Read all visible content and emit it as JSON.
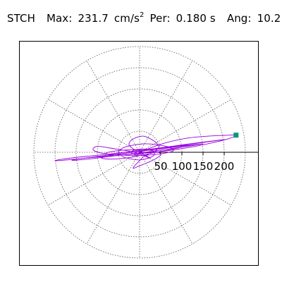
{
  "header": {
    "station": "STCH",
    "max_label": "Max:",
    "max_value": "231.7",
    "max_unit_base": "cm/s",
    "max_unit_exp": "2",
    "per_label": "Per:",
    "per_value": "0.180 s",
    "ang_label": "Ang:",
    "ang_value": "10.2"
  },
  "colors": {
    "trace": "#9900dd",
    "marker": "#009977",
    "grid": "#555555",
    "axis": "#000000",
    "frame": "#000000"
  },
  "chart_data": {
    "type": "polar-orbit",
    "title": "",
    "radial_ticks": [
      50,
      100,
      150,
      200
    ],
    "radial_tick_labels": [
      "50",
      "100",
      "150",
      "200"
    ],
    "rlim": [
      0,
      250
    ],
    "grid": true,
    "angular_grid_step_deg": 30,
    "max_point": {
      "x": 228,
      "y": 40.5
    },
    "series": [
      {
        "points": [
          [
            0,
            0
          ],
          [
            20,
            8
          ],
          [
            60,
            22
          ],
          [
            110,
            33
          ],
          [
            160,
            38
          ],
          [
            200,
            40
          ],
          [
            228,
            40.5
          ],
          [
            210,
            32
          ],
          [
            170,
            22
          ],
          [
            120,
            12
          ],
          [
            60,
            3
          ],
          [
            0,
            -3
          ],
          [
            -60,
            -8
          ],
          [
            -120,
            -13
          ],
          [
            -170,
            -18
          ],
          [
            -200,
            -20
          ],
          [
            -180,
            -16
          ],
          [
            -130,
            -10
          ],
          [
            -70,
            -4
          ],
          [
            -20,
            2
          ],
          [
            30,
            8
          ],
          [
            90,
            16
          ],
          [
            150,
            24
          ],
          [
            200,
            30
          ],
          [
            170,
            26
          ],
          [
            120,
            19
          ],
          [
            60,
            10
          ],
          [
            0,
            2
          ],
          [
            -50,
            -4
          ],
          [
            -100,
            -10
          ],
          [
            -140,
            -15
          ],
          [
            -160,
            -19
          ],
          [
            -130,
            -17
          ],
          [
            -80,
            -11
          ],
          [
            -30,
            -5
          ],
          [
            20,
            1
          ],
          [
            70,
            8
          ],
          [
            120,
            15
          ],
          [
            150,
            20
          ],
          [
            130,
            18
          ],
          [
            80,
            12
          ],
          [
            30,
            6
          ],
          [
            -10,
            1
          ],
          [
            -40,
            -3
          ],
          [
            -70,
            -8
          ],
          [
            -90,
            -14
          ],
          [
            -60,
            -16
          ],
          [
            -20,
            -12
          ],
          [
            10,
            -6
          ],
          [
            40,
            0
          ],
          [
            70,
            6
          ],
          [
            100,
            12
          ],
          [
            120,
            16
          ],
          [
            90,
            15
          ],
          [
            50,
            10
          ],
          [
            10,
            4
          ],
          [
            -30,
            -2
          ],
          [
            -60,
            -6
          ],
          [
            -80,
            -2
          ],
          [
            -50,
            4
          ],
          [
            -10,
            6
          ],
          [
            30,
            4
          ],
          [
            50,
            -4
          ],
          [
            40,
            -14
          ],
          [
            20,
            -24
          ],
          [
            0,
            -32
          ],
          [
            -15,
            -38
          ],
          [
            -10,
            -30
          ],
          [
            0,
            -20
          ],
          [
            10,
            -10
          ],
          [
            30,
            0
          ],
          [
            45,
            10
          ],
          [
            40,
            22
          ],
          [
            25,
            32
          ],
          [
            10,
            38
          ],
          [
            -5,
            36
          ],
          [
            -20,
            28
          ],
          [
            -25,
            18
          ],
          [
            -15,
            8
          ],
          [
            0,
            0
          ],
          [
            15,
            -8
          ],
          [
            25,
            -14
          ],
          [
            15,
            -10
          ],
          [
            0,
            -4
          ],
          [
            -20,
            2
          ],
          [
            -45,
            6
          ],
          [
            -70,
            10
          ],
          [
            -100,
            14
          ],
          [
            -110,
            6
          ],
          [
            -90,
            -2
          ],
          [
            -50,
            -6
          ],
          [
            -10,
            -8
          ],
          [
            30,
            -6
          ],
          [
            60,
            -2
          ],
          [
            80,
            4
          ],
          [
            70,
            12
          ],
          [
            40,
            18
          ],
          [
            10,
            20
          ],
          [
            -20,
            16
          ],
          [
            -40,
            10
          ],
          [
            -50,
            0
          ],
          [
            -40,
            -10
          ],
          [
            -20,
            -16
          ],
          [
            0,
            -18
          ],
          [
            20,
            -14
          ],
          [
            35,
            -6
          ],
          [
            30,
            4
          ],
          [
            10,
            8
          ],
          [
            -10,
            6
          ],
          [
            -20,
            0
          ],
          [
            -10,
            -6
          ],
          [
            0,
            -4
          ],
          [
            5,
            0
          ]
        ]
      }
    ]
  }
}
